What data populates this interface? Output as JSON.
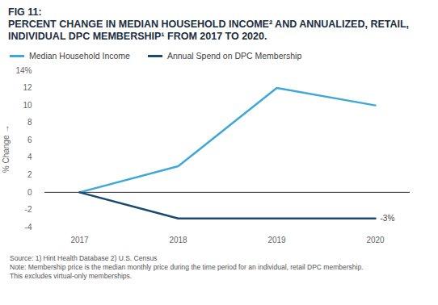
{
  "chart_data": {
    "type": "line",
    "title": "FIG 11:",
    "subtitle": "PERCENT CHANGE IN MEDIAN HOUSEHOLD INCOME² AND ANNUALIZED, RETAIL, INDIVIDUAL DPC MEMBERSHIP¹ FROM 2017 TO 2020.",
    "x": [
      "2017",
      "2018",
      "2019",
      "2020"
    ],
    "series": [
      {
        "name": "Median Household Income",
        "color": "#3fa9d6",
        "values": [
          0,
          3,
          12,
          10
        ]
      },
      {
        "name": "Annual Spend on DPC Membership",
        "color": "#1b4a6f",
        "values": [
          0,
          -3,
          -3,
          -3
        ]
      }
    ],
    "ylabel": "% Change",
    "ylim": [
      -4,
      14
    ],
    "yticks": [
      -4,
      -2,
      0,
      2,
      4,
      6,
      8,
      10,
      12,
      {
        "value": 14,
        "label": "14%"
      }
    ],
    "grid": false,
    "legend": "top",
    "annotations": [
      {
        "x": "2020",
        "y": -3,
        "text": "-3%"
      }
    ],
    "notes": [
      "Source: 1) Hint Health Database 2) U.S. Census",
      "Note: Membership price is the median monthly price during the time period for an individual, retail DPC membership.",
      "This excludes virtual-only memberships."
    ]
  }
}
